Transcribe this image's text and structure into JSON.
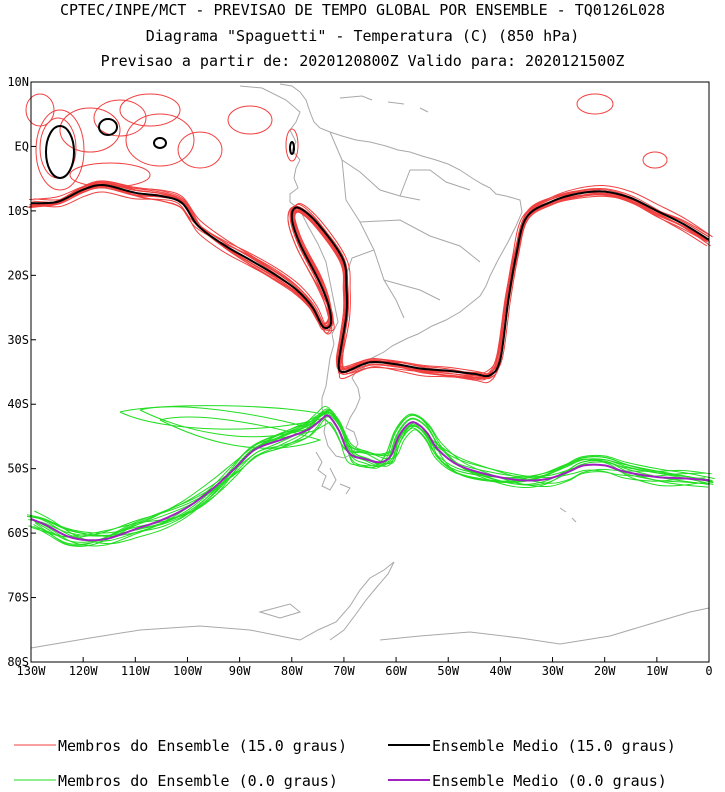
{
  "titles": {
    "line1": "CPTEC/INPE/MCT - PREVISAO DE TEMPO GLOBAL POR ENSEMBLE - TQ0126L028",
    "line2": "Diagrama \"Spaguetti\" - Temperatura (C) (850 hPa)",
    "line3": "Previsao a partir de: 2020120800Z  Valido para: 2020121500Z"
  },
  "colors": {
    "member15": "#f04040",
    "mean15": "#000000",
    "member0": "#22dd22",
    "mean0": "#a020c0",
    "land": "#a8a8a8"
  },
  "legend": [
    {
      "label": "Membros do Ensemble (15.0 graus)",
      "color": "#f04040"
    },
    {
      "label": "Ensemble Medio (15.0 graus)",
      "color": "#000000"
    },
    {
      "label": "Membros do Ensemble (0.0 graus)",
      "color": "#22dd22"
    },
    {
      "label": "Ensemble Medio (0.0 graus)",
      "color": "#a020c0"
    }
  ],
  "chart_data": {
    "type": "line",
    "title": "Diagrama \"Spaguetti\" - Temperatura (C) (850 hPa)",
    "x_ticks": [
      {
        "lon": -130,
        "label": "130W"
      },
      {
        "lon": -120,
        "label": "120W"
      },
      {
        "lon": -110,
        "label": "110W"
      },
      {
        "lon": -100,
        "label": "100W"
      },
      {
        "lon": -90,
        "label": "90W"
      },
      {
        "lon": -80,
        "label": "80W"
      },
      {
        "lon": -70,
        "label": "70W"
      },
      {
        "lon": -60,
        "label": "60W"
      },
      {
        "lon": -50,
        "label": "50W"
      },
      {
        "lon": -40,
        "label": "40W"
      },
      {
        "lon": -30,
        "label": "30W"
      },
      {
        "lon": -20,
        "label": "20W"
      },
      {
        "lon": -10,
        "label": "10W"
      },
      {
        "lon": 0,
        "label": "0"
      }
    ],
    "y_ticks": [
      {
        "lat": 10,
        "label": "10N"
      },
      {
        "lat": 0,
        "label": "EQ"
      },
      {
        "lat": -10,
        "label": "10S"
      },
      {
        "lat": -20,
        "label": "20S"
      },
      {
        "lat": -30,
        "label": "30S"
      },
      {
        "lat": -40,
        "label": "40S"
      },
      {
        "lat": -50,
        "label": "50S"
      },
      {
        "lat": -60,
        "label": "60S"
      },
      {
        "lat": -70,
        "label": "70S"
      },
      {
        "lat": -80,
        "label": "80S"
      }
    ],
    "xlim": [
      -130,
      0
    ],
    "ylim": [
      -80,
      10
    ],
    "series": [
      {
        "name": "Ensemble Medio (15.0 graus)",
        "points": [
          [
            -130,
            -8.8
          ],
          [
            -125,
            -8.6
          ],
          [
            -120,
            -6.7
          ],
          [
            -116,
            -6.0
          ],
          [
            -110,
            -7.2
          ],
          [
            -105,
            -7.7
          ],
          [
            -101,
            -8.8
          ],
          [
            -98,
            -12.3
          ],
          [
            -93,
            -15.3
          ],
          [
            -88,
            -17.6
          ],
          [
            -83,
            -20.0
          ],
          [
            -79,
            -22.3
          ],
          [
            -76,
            -25.0
          ],
          [
            -74,
            -28.0
          ],
          [
            -72.5,
            -27.5
          ],
          [
            -73,
            -24.5
          ],
          [
            -75,
            -20.5
          ],
          [
            -78.5,
            -15.0
          ],
          [
            -80,
            -11.0
          ],
          [
            -78.8,
            -9.5
          ],
          [
            -75,
            -12.0
          ],
          [
            -70.2,
            -17.5
          ],
          [
            -69.5,
            -22.0
          ],
          [
            -69.5,
            -26.0
          ],
          [
            -70.5,
            -31.0
          ],
          [
            -71,
            -34.0
          ],
          [
            -70,
            -35.0
          ],
          [
            -65,
            -33.5
          ],
          [
            -60,
            -33.8
          ],
          [
            -55,
            -34.5
          ],
          [
            -50,
            -34.8
          ],
          [
            -45,
            -35.3
          ],
          [
            -42,
            -35.5
          ],
          [
            -40,
            -33.0
          ],
          [
            -38.5,
            -24.0
          ],
          [
            -37,
            -17.0
          ],
          [
            -35,
            -11.0
          ],
          [
            -30,
            -8.5
          ],
          [
            -25,
            -7.3
          ],
          [
            -20,
            -7.0
          ],
          [
            -15,
            -8.0
          ],
          [
            -10,
            -10.0
          ],
          [
            -5,
            -12.0
          ],
          [
            0,
            -14.5
          ]
        ]
      },
      {
        "name": "Ensemble Medio (0.0 graus)",
        "points": [
          [
            -130,
            -57.8
          ],
          [
            -127,
            -58.8
          ],
          [
            -123,
            -60.5
          ],
          [
            -119,
            -61.1
          ],
          [
            -115,
            -60.8
          ],
          [
            -110,
            -59.4
          ],
          [
            -105,
            -58.0
          ],
          [
            -100,
            -56.0
          ],
          [
            -95,
            -53.0
          ],
          [
            -91,
            -50.0
          ],
          [
            -87,
            -47.0
          ],
          [
            -82,
            -45.5
          ],
          [
            -77,
            -44.0
          ],
          [
            -74.5,
            -42.5
          ],
          [
            -73,
            -41.8
          ],
          [
            -71,
            -44.0
          ],
          [
            -69,
            -47.6
          ],
          [
            -66,
            -48.5
          ],
          [
            -63,
            -49.0
          ],
          [
            -61,
            -48.0
          ],
          [
            -59.5,
            -45.0
          ],
          [
            -57.5,
            -43.0
          ],
          [
            -56,
            -43.0
          ],
          [
            -54,
            -44.5
          ],
          [
            -52,
            -47.0
          ],
          [
            -48,
            -49.5
          ],
          [
            -42,
            -51.0
          ],
          [
            -36,
            -51.8
          ],
          [
            -31,
            -51.6
          ],
          [
            -27,
            -50.5
          ],
          [
            -24,
            -49.5
          ],
          [
            -20,
            -49.5
          ],
          [
            -16,
            -50.5
          ],
          [
            -10,
            -51.3
          ],
          [
            -5,
            -51.5
          ],
          [
            0,
            -51.8
          ]
        ]
      }
    ]
  }
}
